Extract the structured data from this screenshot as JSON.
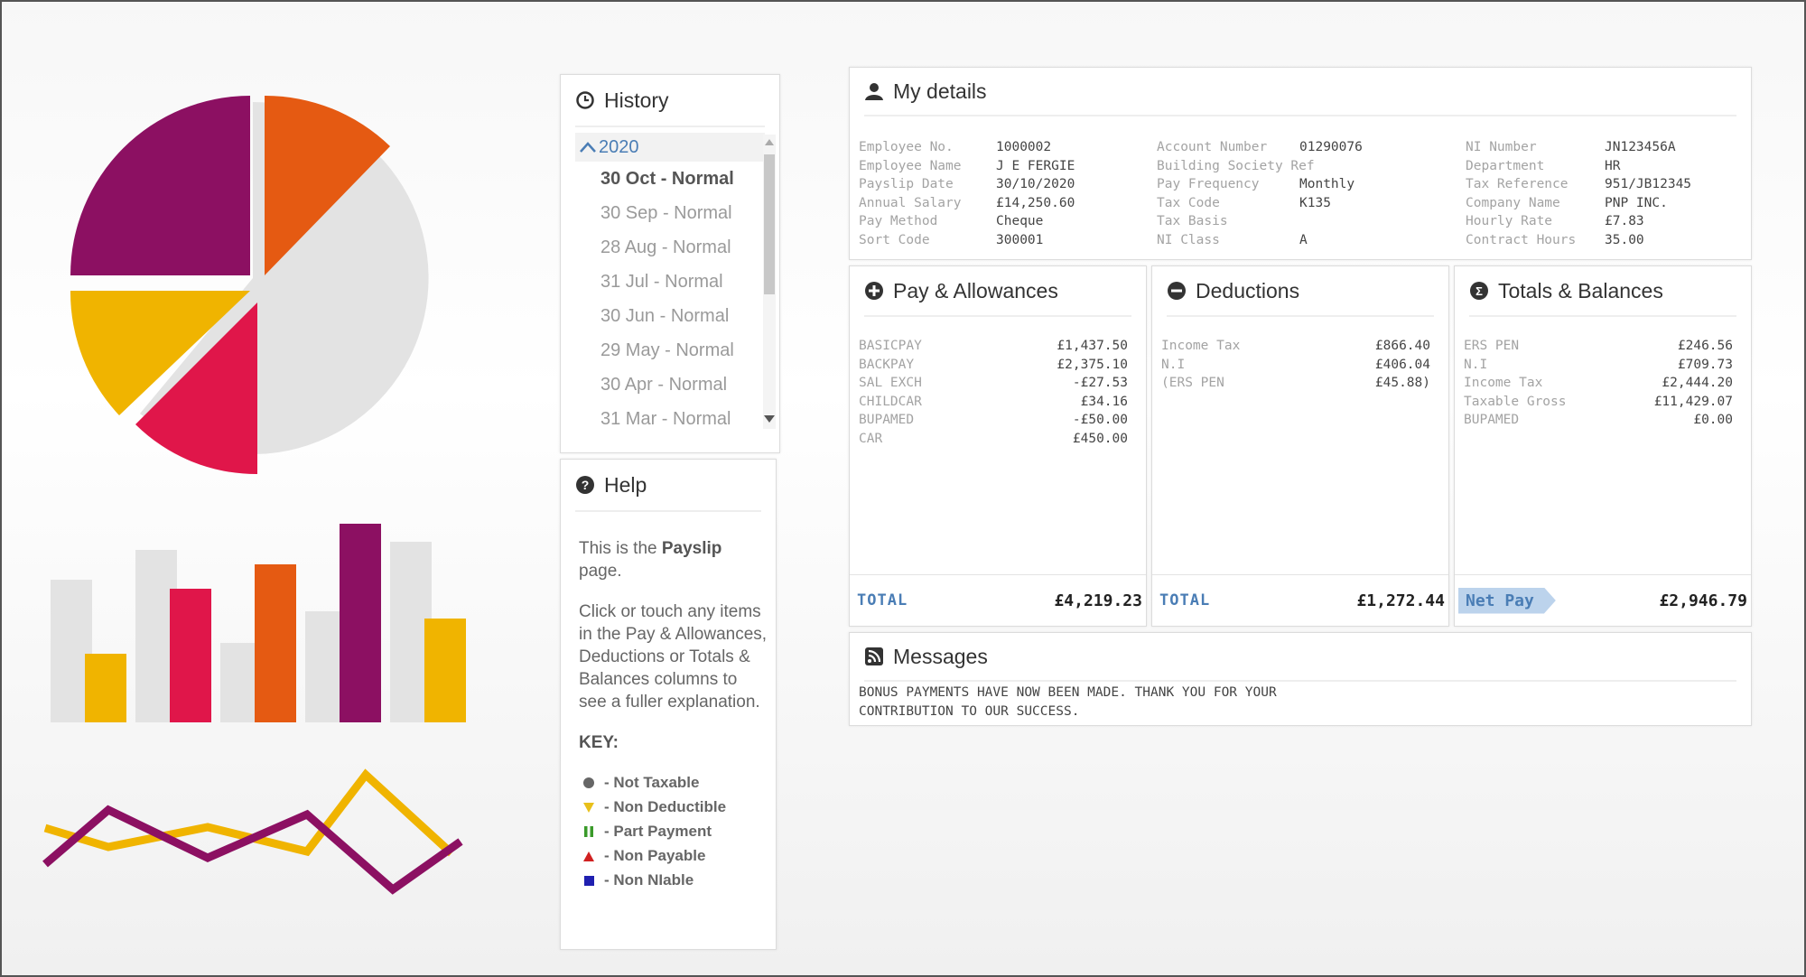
{
  "history": {
    "title": "History",
    "year": "2020",
    "items": [
      {
        "label": "30 Oct - Normal",
        "active": true
      },
      {
        "label": "30 Sep - Normal"
      },
      {
        "label": "28 Aug - Normal"
      },
      {
        "label": "31 Jul - Normal"
      },
      {
        "label": "30 Jun - Normal"
      },
      {
        "label": "29 May - Normal"
      },
      {
        "label": "30 Apr - Normal"
      },
      {
        "label": "31 Mar - Normal"
      }
    ]
  },
  "help": {
    "title": "Help",
    "intro_pre": "This is the ",
    "intro_bold": "Payslip",
    "intro_post": " page.",
    "instructions": "Click or touch any items in the Pay & Allowances, Deductions or Totals & Balances columns to see a fuller explanation.",
    "key_title": "KEY:",
    "key": [
      {
        "label": "- Not Taxable",
        "icon": "circle-icon",
        "color": "#666666"
      },
      {
        "label": "- Non Deductible",
        "icon": "down-triangle-icon",
        "color": "#e8c01a"
      },
      {
        "label": "- Part Payment",
        "icon": "pause-bars-icon",
        "color": "#3a9a2a"
      },
      {
        "label": "- Non Payable",
        "icon": "up-triangle-icon",
        "color": "#d02020"
      },
      {
        "label": "- Non NIable",
        "icon": "square-icon",
        "color": "#2020b0"
      }
    ]
  },
  "details": {
    "title": "My details",
    "col1": [
      {
        "label": "Employee No.",
        "value": "1000002"
      },
      {
        "label": "Employee Name",
        "value": "J E FERGIE"
      },
      {
        "label": "Payslip Date",
        "value": "30/10/2020"
      },
      {
        "label": "Annual Salary",
        "value": "£14,250.60"
      },
      {
        "label": "Pay Method",
        "value": "Cheque"
      },
      {
        "label": "Sort Code",
        "value": "300001"
      }
    ],
    "col2": [
      {
        "label": "Account Number",
        "value": "01290076"
      },
      {
        "label": "Building Society Ref",
        "value": ""
      },
      {
        "label": "Pay Frequency",
        "value": "Monthly"
      },
      {
        "label": "Tax Code",
        "value": "K135"
      },
      {
        "label": "Tax Basis",
        "value": ""
      },
      {
        "label": "NI Class",
        "value": "A"
      }
    ],
    "col3": [
      {
        "label": "NI Number",
        "value": "JN123456A"
      },
      {
        "label": "Department",
        "value": "HR"
      },
      {
        "label": "Tax Reference",
        "value": "951/JB12345"
      },
      {
        "label": "Company Name",
        "value": "PNP INC."
      },
      {
        "label": "Hourly Rate",
        "value": "£7.83"
      },
      {
        "label": "Contract Hours",
        "value": "35.00"
      }
    ]
  },
  "pay": {
    "title": "Pay & Allowances",
    "lines": [
      {
        "label": "BASICPAY",
        "value": "£1,437.50"
      },
      {
        "label": "BACKPAY",
        "value": "£2,375.10"
      },
      {
        "label": "SAL EXCH",
        "value": "-£27.53"
      },
      {
        "label": "CHILDCAR",
        "value": "£34.16"
      },
      {
        "label": "BUPAMED",
        "value": "-£50.00"
      },
      {
        "label": "CAR",
        "value": "£450.00"
      }
    ],
    "total_label": "TOTAL",
    "total_value": "£4,219.23"
  },
  "deductions": {
    "title": "Deductions",
    "lines": [
      {
        "label": "Income Tax",
        "value": "£866.40"
      },
      {
        "label": "N.I",
        "value": "£406.04"
      },
      {
        "label": "(ERS PEN",
        "value": "£45.88)"
      }
    ],
    "total_label": "TOTAL",
    "total_value": "£1,272.44"
  },
  "totals": {
    "title": "Totals & Balances",
    "lines": [
      {
        "label": "ERS PEN",
        "value": "£246.56"
      },
      {
        "label": "N.I",
        "value": "£709.73"
      },
      {
        "label": "Income Tax",
        "value": "£2,444.20"
      },
      {
        "label": "Taxable Gross",
        "value": "£11,429.07"
      },
      {
        "label": "BUPAMED",
        "value": "£0.00"
      }
    ],
    "net_label": "Net Pay",
    "net_value": "£2,946.79"
  },
  "messages": {
    "title": "Messages",
    "lines": [
      "BONUS PAYMENTS HAVE NOW BEEN MADE. THANK YOU FOR YOUR",
      "CONTRIBUTION TO OUR SUCCESS."
    ]
  },
  "colors": {
    "accent_blue": "#4a7db5",
    "purple": "#8c1062",
    "orange": "#e55a12",
    "yellow": "#f0b400",
    "crimson": "#e0164a",
    "grey": "#dddddd"
  }
}
